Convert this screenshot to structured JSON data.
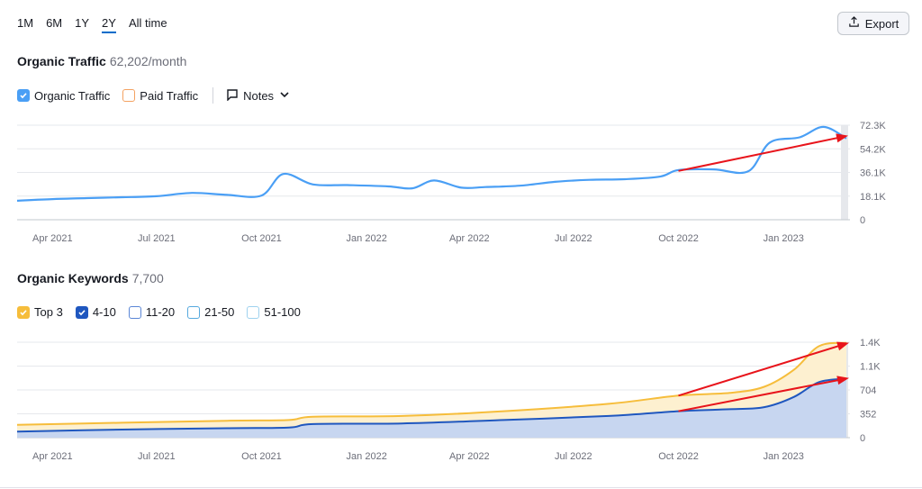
{
  "range_tabs": [
    "1M",
    "6M",
    "1Y",
    "2Y",
    "All time"
  ],
  "active_range": "2Y",
  "export_label": "Export",
  "traffic": {
    "title": "Organic Traffic",
    "value": "62,202/month",
    "legend": {
      "organic": "Organic Traffic",
      "paid": "Paid Traffic",
      "notes": "Notes"
    }
  },
  "keywords": {
    "title": "Organic Keywords",
    "value": "7,700",
    "legend": [
      "Top 3",
      "4-10",
      "11-20",
      "21-50",
      "51-100"
    ]
  },
  "colors": {
    "organic": "#4a9ff5",
    "top3": "#f6bd3b",
    "top3_fill": "#fdf0d0",
    "k4_10": "#1f57bf",
    "k4_10_fill": "#c7d6f0",
    "k11_20": "#5a86d6",
    "k21_50": "#56a9de",
    "k51_100": "#9fd2ef",
    "paid": "#f4a261",
    "arrow": "#e8141b"
  },
  "chart_data": [
    {
      "type": "line",
      "title": "Organic Traffic",
      "x_ticks": [
        "Apr 2021",
        "Jul 2021",
        "Oct 2021",
        "Jan 2022",
        "Apr 2022",
        "Jul 2022",
        "Oct 2022",
        "Jan 2023"
      ],
      "y_ticks": [
        "0",
        "18.1K",
        "36.1K",
        "54.2K",
        "72.3K"
      ],
      "ylim": [
        0,
        72300
      ],
      "series": [
        {
          "name": "Organic Traffic",
          "points": [
            [
              "2021-03-01",
              14500
            ],
            [
              "2021-04-01",
              15800
            ],
            [
              "2021-05-01",
              16500
            ],
            [
              "2021-06-01",
              17200
            ],
            [
              "2021-07-01",
              18000
            ],
            [
              "2021-08-01",
              20500
            ],
            [
              "2021-09-01",
              19000
            ],
            [
              "2021-10-01",
              18500
            ],
            [
              "2021-10-20",
              35000
            ],
            [
              "2021-11-15",
              27000
            ],
            [
              "2021-12-15",
              26500
            ],
            [
              "2022-01-20",
              25500
            ],
            [
              "2022-02-10",
              24000
            ],
            [
              "2022-03-01",
              30000
            ],
            [
              "2022-03-25",
              24500
            ],
            [
              "2022-04-15",
              25000
            ],
            [
              "2022-05-15",
              26000
            ],
            [
              "2022-06-15",
              29000
            ],
            [
              "2022-07-15",
              30500
            ],
            [
              "2022-08-15",
              31000
            ],
            [
              "2022-09-15",
              33000
            ],
            [
              "2022-10-01",
              38000
            ],
            [
              "2022-11-01",
              38500
            ],
            [
              "2022-12-01",
              37000
            ],
            [
              "2022-12-20",
              59000
            ],
            [
              "2023-01-15",
              63000
            ],
            [
              "2023-02-05",
              71000
            ],
            [
              "2023-02-25",
              62202
            ]
          ]
        }
      ],
      "annotation": "red trend arrow from Oct 2022 to end of chart"
    },
    {
      "type": "area",
      "title": "Organic Keywords",
      "x_ticks": [
        "Apr 2021",
        "Jul 2021",
        "Oct 2021",
        "Jan 2022",
        "Apr 2022",
        "Jul 2022",
        "Oct 2022",
        "Jan 2023"
      ],
      "y_ticks": [
        "0",
        "352",
        "704",
        "1.1K",
        "1.4K"
      ],
      "ylim": [
        0,
        1408
      ],
      "series": [
        {
          "name": "Top 3",
          "points": [
            [
              "2021-03-01",
              190
            ],
            [
              "2021-06-01",
              220
            ],
            [
              "2021-09-01",
              250
            ],
            [
              "2021-10-25",
              260
            ],
            [
              "2021-11-15",
              310
            ],
            [
              "2022-02-01",
              320
            ],
            [
              "2022-05-01",
              390
            ],
            [
              "2022-08-01",
              500
            ],
            [
              "2022-10-01",
              620
            ],
            [
              "2022-11-15",
              660
            ],
            [
              "2022-12-15",
              750
            ],
            [
              "2023-01-10",
              1000
            ],
            [
              "2023-02-01",
              1350
            ],
            [
              "2023-02-25",
              1400
            ]
          ]
        },
        {
          "name": "4-10",
          "points": [
            [
              "2021-03-01",
              90
            ],
            [
              "2021-06-01",
              120
            ],
            [
              "2021-09-01",
              140
            ],
            [
              "2021-10-25",
              150
            ],
            [
              "2021-11-15",
              200
            ],
            [
              "2022-02-01",
              210
            ],
            [
              "2022-05-01",
              260
            ],
            [
              "2022-08-01",
              320
            ],
            [
              "2022-10-01",
              390
            ],
            [
              "2022-11-15",
              420
            ],
            [
              "2022-12-15",
              450
            ],
            [
              "2023-01-10",
              600
            ],
            [
              "2023-02-01",
              820
            ],
            [
              "2023-02-25",
              870
            ]
          ]
        }
      ],
      "annotation": "two red trend arrows from Oct 2022 to end of chart"
    }
  ]
}
